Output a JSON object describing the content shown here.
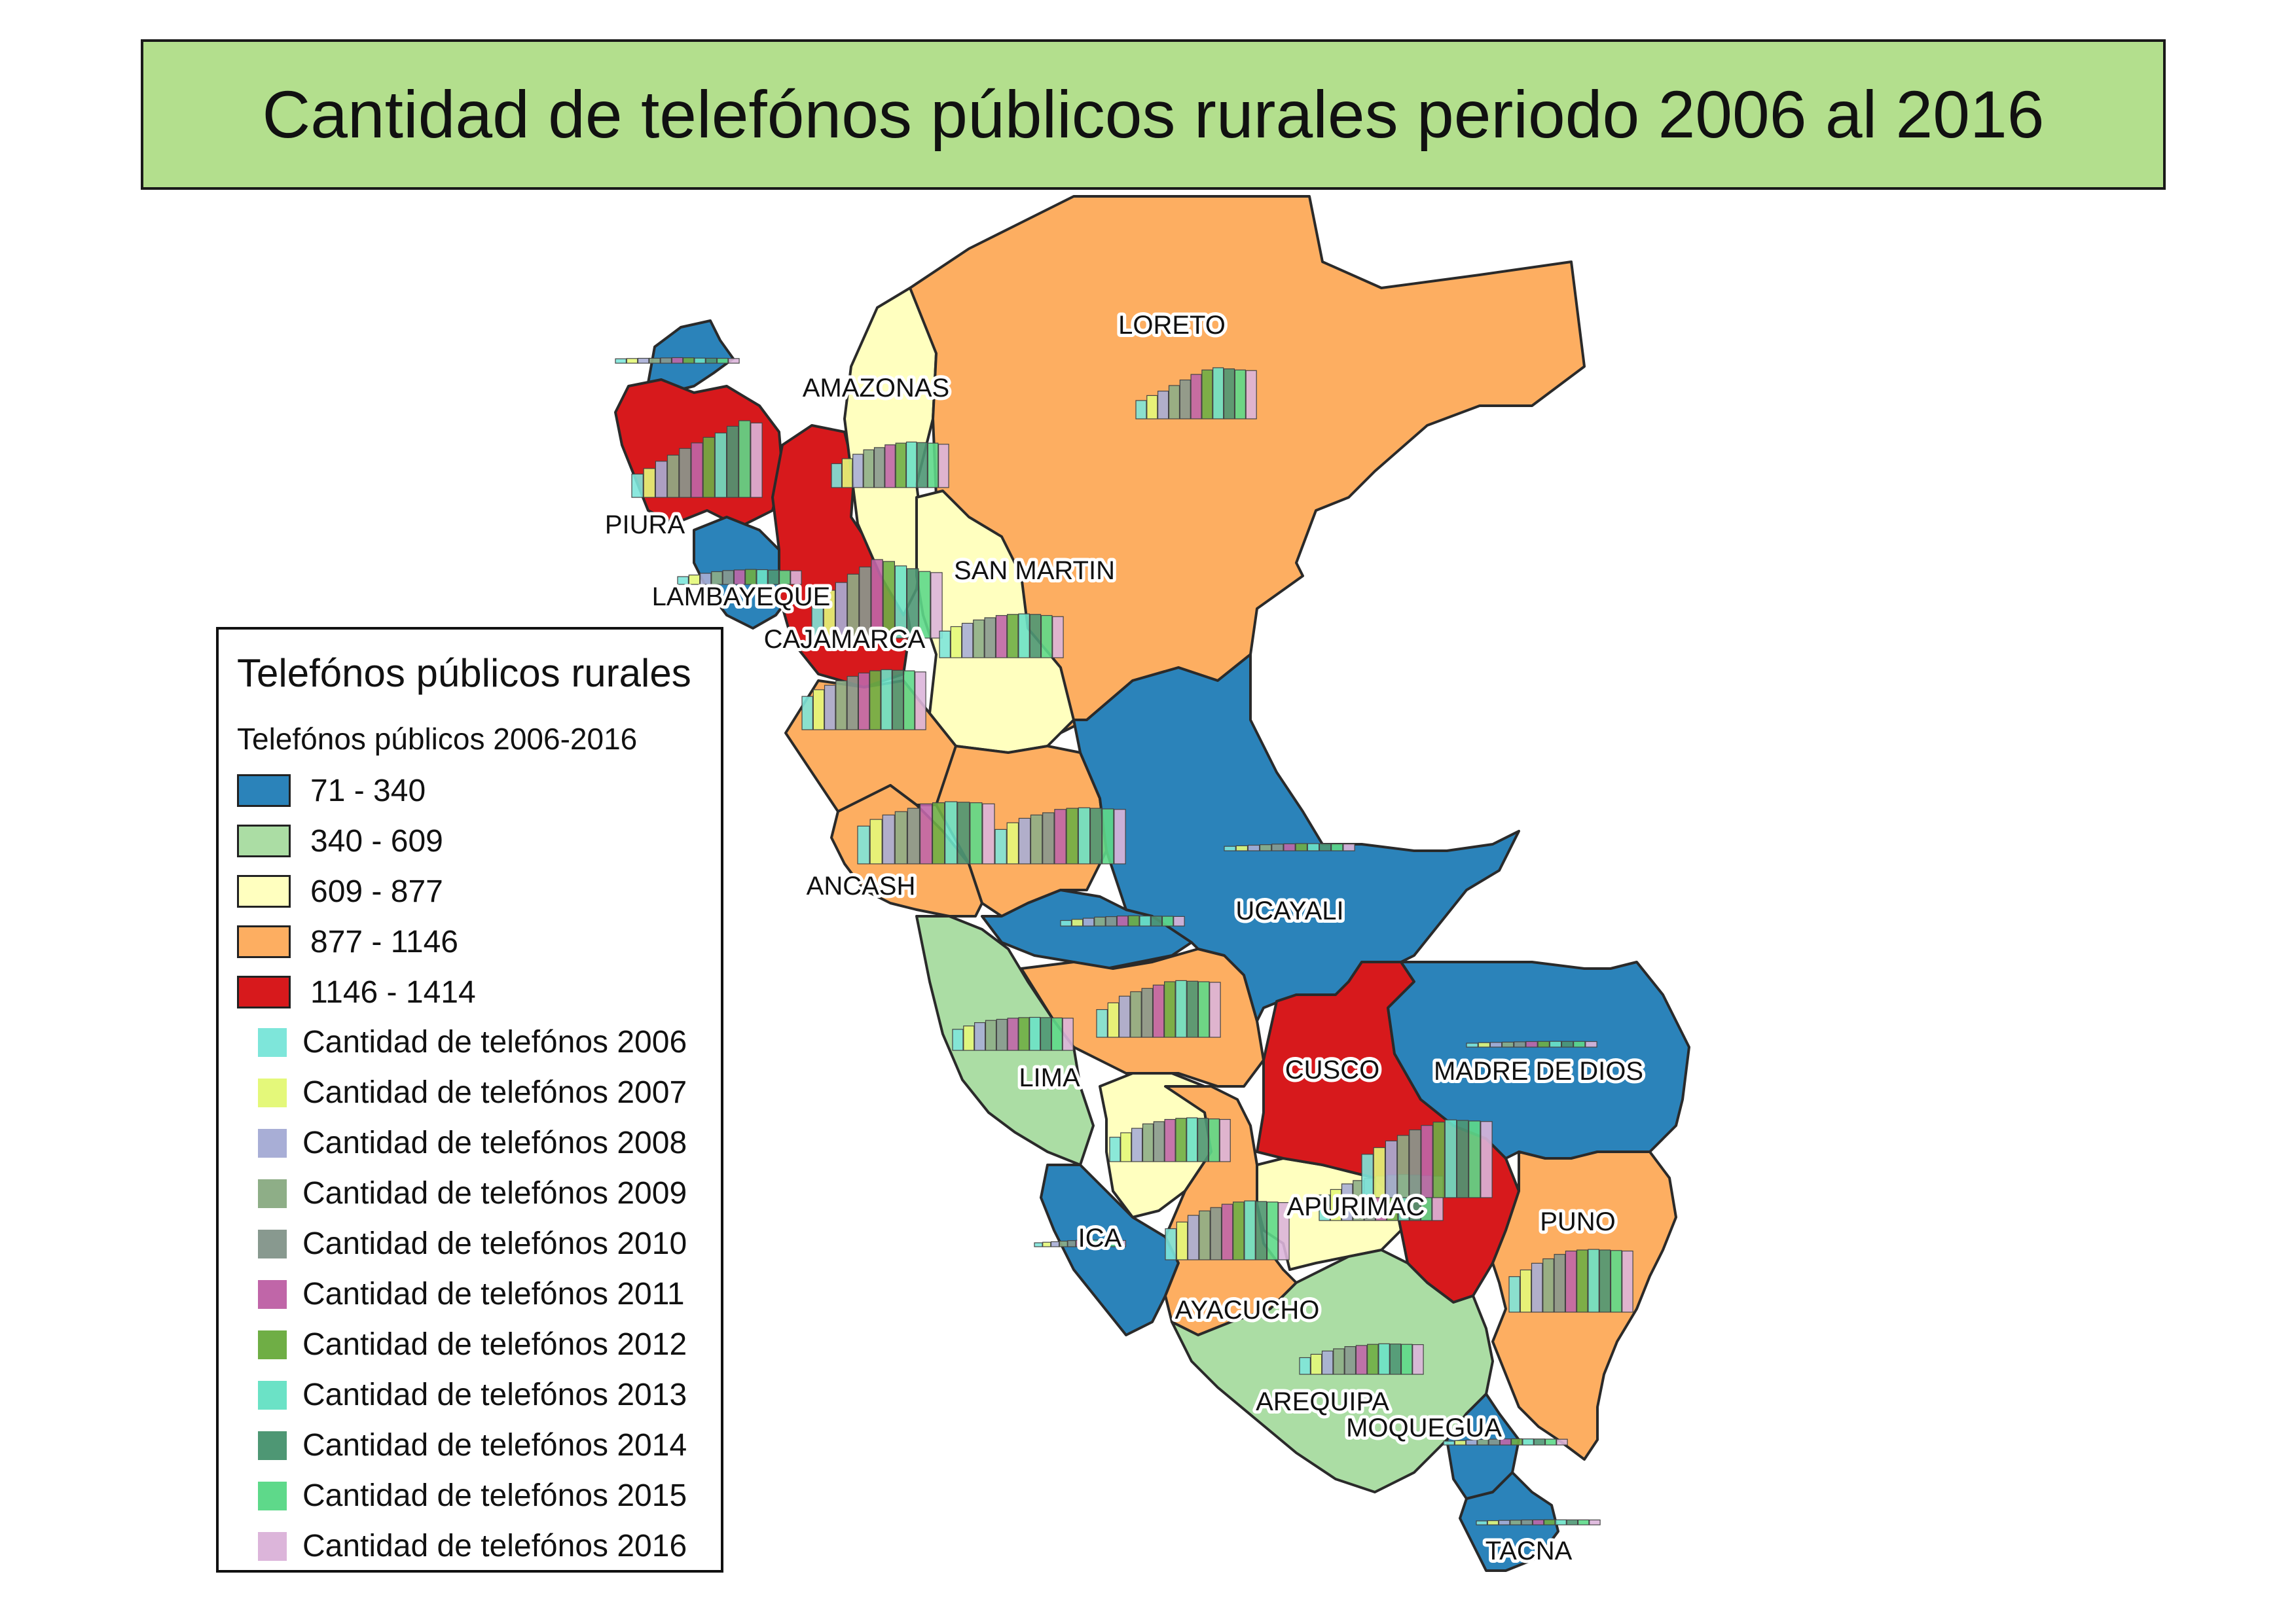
{
  "title": "Cantidad de telefónos públicos rurales periodo 2006 al 2016",
  "legend": {
    "title": "Telefónos públicos rurales",
    "subtitle": "Telefónos públicos 2006-2016",
    "ranges": [
      {
        "label": "71 - 340",
        "color": "#2b83ba"
      },
      {
        "label": "340 - 609",
        "color": "#abdda4"
      },
      {
        "label": "609 - 877",
        "color": "#ffffbf"
      },
      {
        "label": "877 - 1146",
        "color": "#fdae61"
      },
      {
        "label": "1146 - 1414",
        "color": "#d7191c"
      }
    ],
    "years": [
      {
        "label": "Cantidad de telefónos 2006",
        "color": "#7ee6da"
      },
      {
        "label": "Cantidad de telefónos 2007",
        "color": "#e4f87a"
      },
      {
        "label": "Cantidad de telefónos 2008",
        "color": "#a8aed6"
      },
      {
        "label": "Cantidad de telefónos 2009",
        "color": "#8eae87"
      },
      {
        "label": "Cantidad de telefónos 2010",
        "color": "#88998f"
      },
      {
        "label": "Cantidad de telefónos 2011",
        "color": "#c066a8"
      },
      {
        "label": "Cantidad de telefónos 2012",
        "color": "#6fae45"
      },
      {
        "label": "Cantidad de telefónos 2013",
        "color": "#6be2c6"
      },
      {
        "label": "Cantidad de telefónos 2014",
        "color": "#4e9774"
      },
      {
        "label": "Cantidad de telefónos 2015",
        "color": "#5ed98a"
      },
      {
        "label": "Cantidad de telefónos 2016",
        "color": "#dcb5da"
      }
    ]
  },
  "regions": [
    {
      "id": "tumbes",
      "label": "",
      "range_class": 0,
      "values": [
        80,
        85,
        88,
        90,
        95,
        100,
        98,
        92,
        90,
        88,
        85
      ]
    },
    {
      "id": "piura",
      "label": "PIURA",
      "range_class": 4,
      "values": [
        420,
        520,
        650,
        760,
        880,
        980,
        1080,
        1160,
        1280,
        1380,
        1340
      ]
    },
    {
      "id": "lambayeque",
      "label": "LAMBAYEQUE",
      "range_class": 0,
      "values": [
        140,
        170,
        200,
        230,
        250,
        260,
        270,
        265,
        258,
        250,
        245
      ]
    },
    {
      "id": "cajamarca",
      "label": "CAJAMARCA",
      "range_class": 4,
      "values": [
        700,
        860,
        1000,
        1150,
        1280,
        1414,
        1380,
        1300,
        1250,
        1200,
        1180
      ]
    },
    {
      "id": "amazonas",
      "label": "AMAZONAS",
      "range_class": 2,
      "values": [
        430,
        520,
        600,
        680,
        720,
        770,
        800,
        820,
        810,
        800,
        780
      ]
    },
    {
      "id": "loreto",
      "label": "LORETO",
      "range_class": 3,
      "values": [
        330,
        420,
        500,
        600,
        700,
        800,
        880,
        920,
        900,
        880,
        870
      ]
    },
    {
      "id": "san_martin",
      "label": "SAN MARTIN",
      "range_class": 2,
      "values": [
        480,
        560,
        620,
        680,
        720,
        760,
        780,
        790,
        780,
        760,
        740
      ]
    },
    {
      "id": "la_libertad",
      "label": "",
      "range_class": 3,
      "values": [
        600,
        720,
        800,
        880,
        960,
        1020,
        1060,
        1080,
        1070,
        1060,
        1040
      ]
    },
    {
      "id": "ancash",
      "label": "ANCASH",
      "range_class": 3,
      "values": [
        680,
        800,
        880,
        940,
        1000,
        1080,
        1100,
        1120,
        1110,
        1100,
        1080
      ]
    },
    {
      "id": "huanuco",
      "label": "",
      "range_class": 3,
      "values": [
        620,
        740,
        820,
        880,
        920,
        980,
        1000,
        1010,
        1000,
        990,
        980
      ]
    },
    {
      "id": "pasco",
      "label": "",
      "range_class": 0,
      "values": [
        100,
        120,
        140,
        160,
        170,
        180,
        185,
        180,
        178,
        175,
        172
      ]
    },
    {
      "id": "junin",
      "label": "",
      "range_class": 3,
      "values": [
        500,
        620,
        740,
        820,
        880,
        940,
        1000,
        1020,
        1010,
        1000,
        990
      ]
    },
    {
      "id": "lima",
      "label": "LIMA",
      "range_class": 1,
      "values": [
        380,
        440,
        500,
        540,
        560,
        580,
        590,
        595,
        590,
        585,
        580
      ]
    },
    {
      "id": "ucayali",
      "label": "UCAYALI",
      "range_class": 0,
      "values": [
        80,
        90,
        100,
        110,
        120,
        125,
        130,
        128,
        126,
        124,
        122
      ]
    },
    {
      "id": "huancavelica",
      "label": "",
      "range_class": 2,
      "values": [
        440,
        520,
        600,
        680,
        720,
        760,
        780,
        790,
        780,
        770,
        760
      ]
    },
    {
      "id": "ica",
      "label": "ICA",
      "range_class": 0,
      "values": [
        71,
        80,
        90,
        100,
        110,
        115,
        120,
        118,
        116,
        114,
        112
      ]
    },
    {
      "id": "ayacucho",
      "label": "AYACUCHO",
      "range_class": 3,
      "values": [
        560,
        680,
        800,
        880,
        940,
        1000,
        1040,
        1060,
        1050,
        1040,
        1030
      ]
    },
    {
      "id": "apurimac",
      "label": "APURIMAC",
      "range_class": 2,
      "values": [
        460,
        560,
        660,
        720,
        760,
        800,
        820,
        830,
        820,
        810,
        800
      ]
    },
    {
      "id": "cusco",
      "label": "CUSCO",
      "range_class": 4,
      "values": [
        780,
        900,
        1020,
        1120,
        1220,
        1300,
        1360,
        1400,
        1390,
        1380,
        1370
      ]
    },
    {
      "id": "madre_de_dios",
      "label": "MADRE DE DIOS",
      "range_class": 0,
      "values": [
        71,
        80,
        85,
        90,
        95,
        100,
        102,
        104,
        103,
        102,
        100
      ]
    },
    {
      "id": "puno",
      "label": "PUNO",
      "range_class": 3,
      "values": [
        640,
        760,
        880,
        960,
        1040,
        1100,
        1120,
        1130,
        1120,
        1110,
        1100
      ]
    },
    {
      "id": "arequipa",
      "label": "AREQUIPA",
      "range_class": 1,
      "values": [
        300,
        360,
        420,
        460,
        500,
        520,
        540,
        550,
        545,
        540,
        535
      ]
    },
    {
      "id": "moquegua",
      "label": "MOQUEGUA",
      "range_class": 0,
      "values": [
        71,
        80,
        90,
        100,
        105,
        110,
        112,
        110,
        108,
        106,
        104
      ]
    },
    {
      "id": "tacna",
      "label": "TACNA",
      "range_class": 0,
      "values": [
        71,
        76,
        80,
        84,
        88,
        90,
        92,
        91,
        90,
        89,
        88
      ]
    }
  ]
}
